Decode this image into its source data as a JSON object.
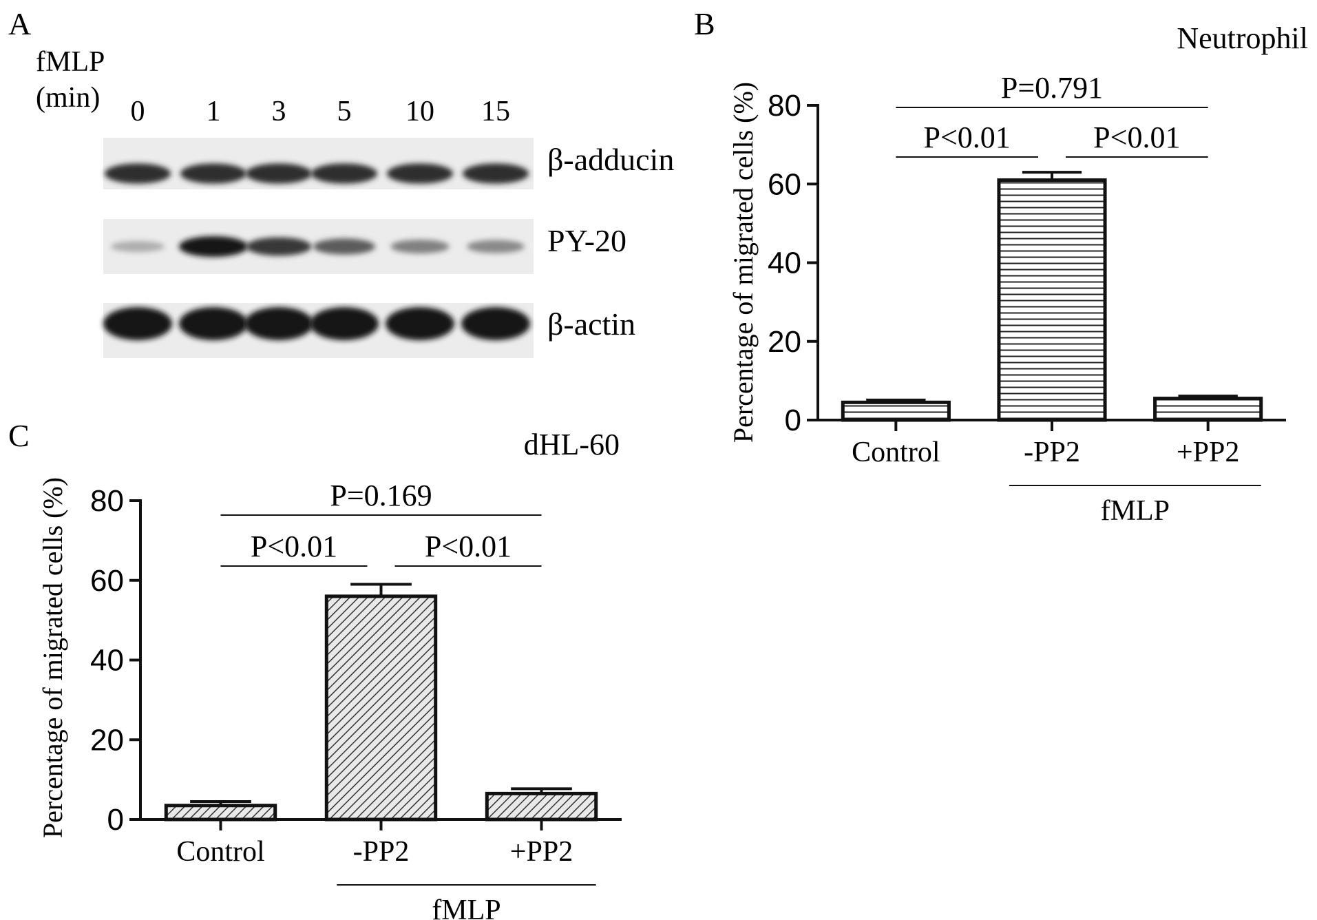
{
  "panel_a": {
    "letter": "A",
    "stimulus_label": "fMLP",
    "unit_label": "(min)",
    "lanes": [
      "0",
      "1",
      "3",
      "5",
      "10",
      "15"
    ],
    "blots": [
      {
        "name": "β-adducin",
        "intensity": [
          0.85,
          0.85,
          0.85,
          0.85,
          0.85,
          0.85
        ]
      },
      {
        "name": "PY-20",
        "intensity": [
          0.15,
          1.0,
          0.8,
          0.6,
          0.4,
          0.35
        ]
      },
      {
        "name": "β-actin",
        "intensity": [
          1.0,
          1.0,
          1.0,
          1.0,
          1.0,
          1.0
        ]
      }
    ]
  },
  "chart_data": [
    {
      "panel": "B",
      "type": "bar",
      "title": "Neutrophil",
      "ylabel": "Percentage of migrated cells (%)",
      "categories": [
        "Control",
        "-PP2",
        "+PP2"
      ],
      "values": [
        4.5,
        61,
        5.5
      ],
      "errors": [
        0.6,
        2,
        0.6
      ],
      "ylim": [
        0,
        80
      ],
      "yticks": [
        0,
        20,
        40,
        60,
        80
      ],
      "pattern": "horizontal-lines",
      "group_label": {
        "text": "fMLP",
        "from": 1,
        "to": 2
      },
      "comparisons": [
        {
          "from": 0,
          "to": 1,
          "label": "P<0.01",
          "level": 1
        },
        {
          "from": 1,
          "to": 2,
          "label": "P<0.01",
          "level": 1
        },
        {
          "from": 0,
          "to": 2,
          "label": "P=0.791",
          "level": 2
        }
      ]
    },
    {
      "panel": "C",
      "type": "bar",
      "title": "dHL-60",
      "ylabel": "Percentage of migrated cells (%)",
      "categories": [
        "Control",
        "-PP2",
        "+PP2"
      ],
      "values": [
        3.5,
        56,
        6.5
      ],
      "errors": [
        1,
        3,
        1.2
      ],
      "ylim": [
        0,
        80
      ],
      "yticks": [
        0,
        20,
        40,
        60,
        80
      ],
      "pattern": "diagonal-hatch",
      "group_label": {
        "text": "fMLP",
        "from": 1,
        "to": 2
      },
      "comparisons": [
        {
          "from": 0,
          "to": 1,
          "label": "P<0.01",
          "level": 1
        },
        {
          "from": 1,
          "to": 2,
          "label": "P<0.01",
          "level": 1
        },
        {
          "from": 0,
          "to": 2,
          "label": "P=0.169",
          "level": 2
        }
      ]
    }
  ]
}
